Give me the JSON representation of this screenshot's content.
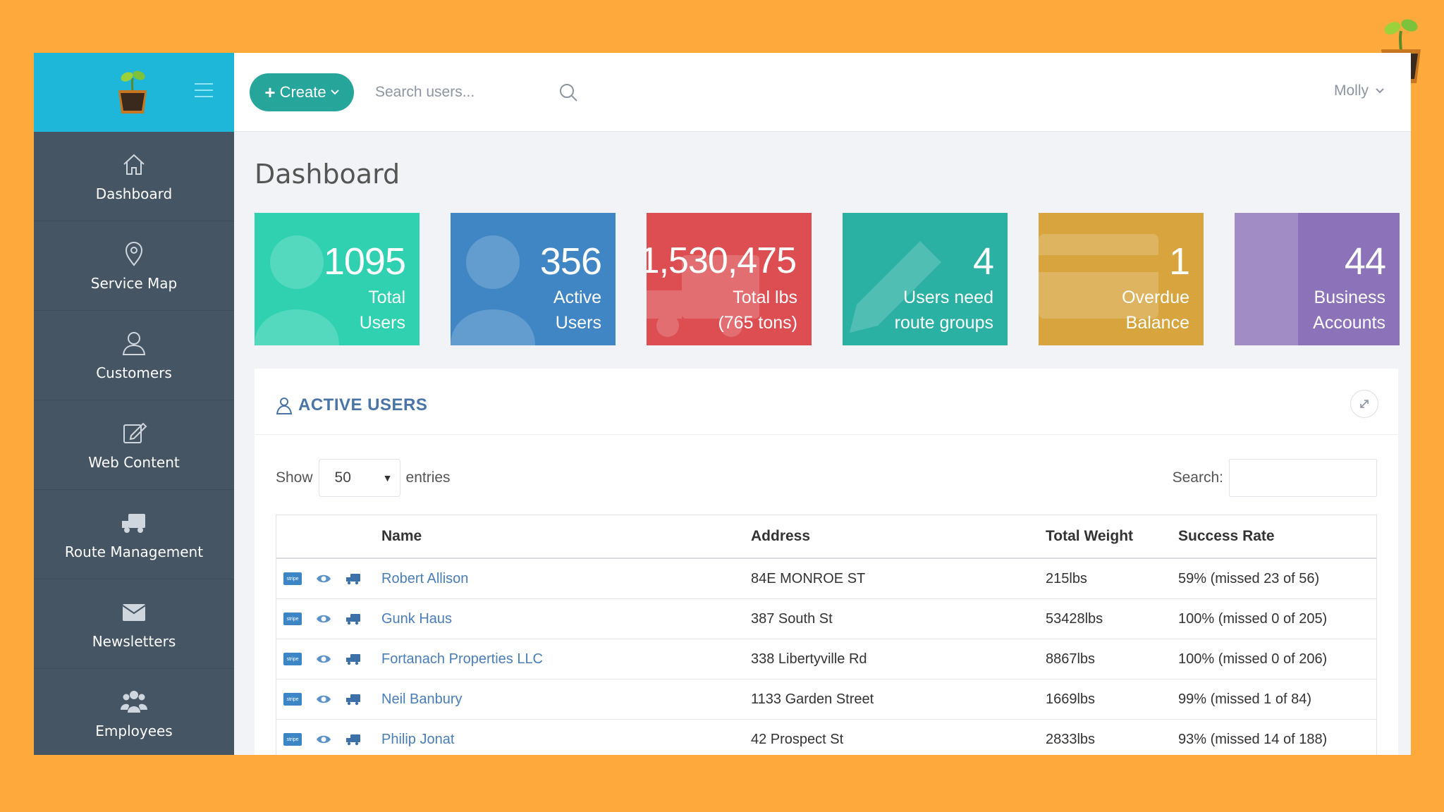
{
  "colors": {
    "background": "#fda93c",
    "brand": "#1eb7da",
    "sidebar": "#465564",
    "create_button": "#26a69a",
    "link": "#4a7eb8"
  },
  "header": {
    "create_label": "Create",
    "search_placeholder": "Search users...",
    "user_name": "Molly"
  },
  "sidebar": {
    "items": [
      {
        "label": "Dashboard",
        "icon": "home-icon"
      },
      {
        "label": "Service Map",
        "icon": "map-pin-icon"
      },
      {
        "label": "Customers",
        "icon": "user-icon"
      },
      {
        "label": "Web Content",
        "icon": "edit-icon"
      },
      {
        "label": "Route Management",
        "icon": "truck-icon"
      },
      {
        "label": "Newsletters",
        "icon": "envelope-icon"
      },
      {
        "label": "Employees",
        "icon": "group-icon"
      }
    ]
  },
  "page": {
    "title": "Dashboard"
  },
  "stats": [
    {
      "value": "1095",
      "line1": "Total",
      "line2": "Users",
      "color": "#2fd1b0",
      "icon": "users-icon"
    },
    {
      "value": "356",
      "line1": "Active",
      "line2": "Users",
      "color": "#4186c4",
      "icon": "users-icon"
    },
    {
      "value": "1,530,475",
      "line1": "Total lbs",
      "line2": "(765 tons)",
      "color": "#dc4e52",
      "icon": "truck-icon"
    },
    {
      "value": "4",
      "line1": "Users need",
      "line2": "route groups",
      "color": "#2bb0a4",
      "icon": "pencil-icon"
    },
    {
      "value": "1",
      "line1": "Overdue",
      "line2": "Balance",
      "color": "#d8a43e",
      "icon": "credit-card-icon"
    },
    {
      "value": "44",
      "line1": "Business",
      "line2": "Accounts",
      "color": "#8c73b9",
      "icon": "building-icon"
    }
  ],
  "active_users": {
    "title": "ACTIVE USERS",
    "show_label": "Show",
    "entries_value": "50",
    "entries_label": "entries",
    "search_label": "Search:",
    "columns": [
      "Name",
      "Address",
      "Total Weight",
      "Success Rate"
    ],
    "rows": [
      {
        "name": "Robert Allison",
        "address": "84E MONROE ST",
        "weight": "215lbs",
        "rate": "59% (missed 23 of 56)"
      },
      {
        "name": "Gunk Haus",
        "address": "387 South St",
        "weight": "53428lbs",
        "rate": "100% (missed 0 of 205)"
      },
      {
        "name": "Fortanach Properties LLC",
        "address": "338 Libertyville Rd",
        "weight": "8867lbs",
        "rate": "100% (missed 0 of 206)"
      },
      {
        "name": "Neil Banbury",
        "address": "1133 Garden Street",
        "weight": "1669lbs",
        "rate": "99% (missed 1 of 84)"
      },
      {
        "name": "Philip Jonat",
        "address": "42 Prospect St",
        "weight": "2833lbs",
        "rate": "93% (missed 14 of 188)"
      }
    ],
    "row_icons": {
      "payment": "stripe",
      "view": "eye-icon",
      "route": "truck-icon"
    }
  }
}
